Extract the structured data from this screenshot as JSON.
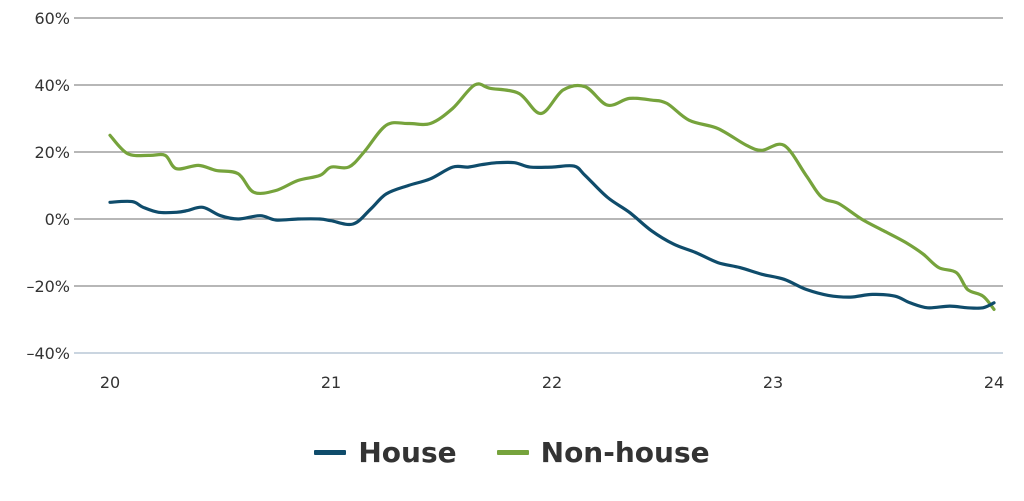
{
  "chart_data": {
    "type": "line",
    "title": "",
    "xlabel": "",
    "ylabel": "",
    "x_ticks": [
      "20",
      "21",
      "22",
      "23",
      "24"
    ],
    "x_range": [
      20,
      24
    ],
    "y_ticks": [
      "60%",
      "40%",
      "20%",
      "0%",
      "–20%",
      "–40%"
    ],
    "y_tick_values": [
      60,
      40,
      20,
      0,
      -20,
      -40
    ],
    "ylim": [
      -40,
      60
    ],
    "grid": "horizontal",
    "legend_position": "bottom-center",
    "series": [
      {
        "name": "House",
        "color": "#0f4c6b",
        "points": [
          [
            20.0,
            5
          ],
          [
            20.1,
            5.2
          ],
          [
            20.15,
            3.5
          ],
          [
            20.22,
            2
          ],
          [
            20.3,
            2
          ],
          [
            20.35,
            2.5
          ],
          [
            20.42,
            3.5
          ],
          [
            20.5,
            1
          ],
          [
            20.58,
            0
          ],
          [
            20.68,
            1
          ],
          [
            20.75,
            -0.3
          ],
          [
            20.85,
            0
          ],
          [
            20.95,
            0
          ],
          [
            21.0,
            -0.5
          ],
          [
            21.1,
            -1.5
          ],
          [
            21.18,
            3
          ],
          [
            21.25,
            7.5
          ],
          [
            21.35,
            10
          ],
          [
            21.45,
            12
          ],
          [
            21.55,
            15.5
          ],
          [
            21.62,
            15.5
          ],
          [
            21.68,
            16.2
          ],
          [
            21.75,
            16.8
          ],
          [
            21.83,
            16.8
          ],
          [
            21.9,
            15.5
          ],
          [
            22.0,
            15.5
          ],
          [
            22.1,
            15.8
          ],
          [
            22.15,
            13
          ],
          [
            22.25,
            6.5
          ],
          [
            22.35,
            2
          ],
          [
            22.45,
            -3.5
          ],
          [
            22.55,
            -7.5
          ],
          [
            22.65,
            -10
          ],
          [
            22.75,
            -13
          ],
          [
            22.85,
            -14.5
          ],
          [
            22.95,
            -16.5
          ],
          [
            23.05,
            -18
          ],
          [
            23.15,
            -21
          ],
          [
            23.25,
            -22.8
          ],
          [
            23.35,
            -23.3
          ],
          [
            23.45,
            -22.5
          ],
          [
            23.55,
            -23
          ],
          [
            23.62,
            -25
          ],
          [
            23.7,
            -26.5
          ],
          [
            23.8,
            -26
          ],
          [
            23.88,
            -26.5
          ],
          [
            23.95,
            -26.5
          ],
          [
            24.0,
            -25
          ]
        ]
      },
      {
        "name": "Non-house",
        "color": "#76a33c",
        "points": [
          [
            20.0,
            25
          ],
          [
            20.08,
            19.5
          ],
          [
            20.18,
            19
          ],
          [
            20.25,
            19
          ],
          [
            20.3,
            15
          ],
          [
            20.4,
            16
          ],
          [
            20.48,
            14.5
          ],
          [
            20.58,
            13.5
          ],
          [
            20.65,
            8
          ],
          [
            20.75,
            8.5
          ],
          [
            20.85,
            11.5
          ],
          [
            20.95,
            13
          ],
          [
            21.0,
            15.5
          ],
          [
            21.08,
            15.5
          ],
          [
            21.15,
            20
          ],
          [
            21.25,
            28
          ],
          [
            21.35,
            28.5
          ],
          [
            21.45,
            28.5
          ],
          [
            21.55,
            33
          ],
          [
            21.65,
            40
          ],
          [
            21.72,
            39
          ],
          [
            21.85,
            37.5
          ],
          [
            21.95,
            31.5
          ],
          [
            22.05,
            38.5
          ],
          [
            22.15,
            39.5
          ],
          [
            22.25,
            34
          ],
          [
            22.35,
            36
          ],
          [
            22.45,
            35.5
          ],
          [
            22.52,
            34.5
          ],
          [
            22.62,
            29.5
          ],
          [
            22.75,
            27
          ],
          [
            22.88,
            22
          ],
          [
            22.95,
            20.5
          ],
          [
            23.05,
            22
          ],
          [
            23.15,
            13
          ],
          [
            23.22,
            6.5
          ],
          [
            23.3,
            4.5
          ],
          [
            23.4,
            0
          ],
          [
            23.5,
            -3.5
          ],
          [
            23.6,
            -7
          ],
          [
            23.68,
            -10.5
          ],
          [
            23.75,
            -14.5
          ],
          [
            23.83,
            -16
          ],
          [
            23.88,
            -21
          ],
          [
            23.95,
            -23
          ],
          [
            24.0,
            -27
          ]
        ]
      }
    ]
  }
}
